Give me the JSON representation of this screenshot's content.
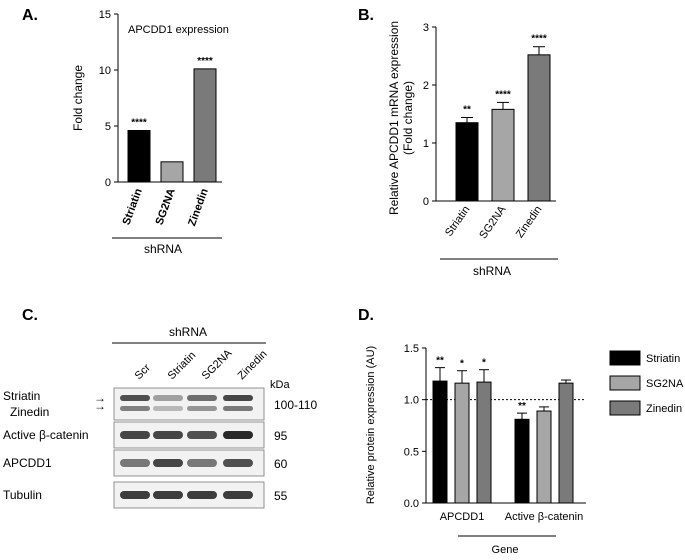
{
  "panels": {
    "a": "A.",
    "b": "B.",
    "c": "C.",
    "d": "D."
  },
  "chart_data": [
    {
      "panel": "A.",
      "type": "bar",
      "title": "APCDD1 expression",
      "ylabel": "Fold change",
      "xlabel": "shRNA",
      "categories": [
        "Striatin",
        "SG2NA",
        "Zinedin"
      ],
      "values": [
        4.6,
        1.8,
        10.1
      ],
      "annotations": [
        "****",
        "",
        "****"
      ],
      "ylim": [
        0,
        15
      ],
      "yticks": [
        0,
        5,
        10,
        15
      ],
      "colors": [
        "#000000",
        "#a6a6a6",
        "#7a7a7a"
      ]
    },
    {
      "panel": "B.",
      "type": "bar",
      "title": "",
      "ylabel": "Relative APCDD1 mRNA expression",
      "ylabel2": "(Fold change)",
      "xlabel": "shRNA",
      "categories": [
        "Striatin",
        "SG2NA",
        "Zinedin"
      ],
      "values": [
        1.35,
        1.58,
        2.52
      ],
      "errors": [
        0.09,
        0.12,
        0.14
      ],
      "annotations": [
        "**",
        "****",
        "****"
      ],
      "ylim": [
        0,
        3
      ],
      "yticks": [
        0,
        1,
        2,
        3
      ],
      "colors": [
        "#000000",
        "#a6a6a6",
        "#7a7a7a"
      ]
    },
    {
      "panel": "D.",
      "type": "bar",
      "ylabel": "Relative protein expression (AU)",
      "xlabel": "Gene",
      "categories": [
        "APCDD1",
        "Active β-catenin"
      ],
      "series": [
        {
          "name": "Striatin",
          "values": [
            1.18,
            0.81
          ],
          "errors": [
            0.13,
            0.06
          ],
          "annotations": [
            "**",
            "**"
          ],
          "color": "#000000"
        },
        {
          "name": "SG2NA",
          "values": [
            1.16,
            0.89
          ],
          "errors": [
            0.12,
            0.04
          ],
          "annotations": [
            "*",
            ""
          ],
          "color": "#a6a6a6"
        },
        {
          "name": "Zinedin",
          "values": [
            1.17,
            1.16
          ],
          "errors": [
            0.12,
            0.03
          ],
          "annotations": [
            "*",
            ""
          ],
          "color": "#7a7a7a"
        }
      ],
      "reference_line": 1.0,
      "ylim": [
        0,
        1.5
      ],
      "yticks": [
        "0.0",
        "0.5",
        "1.0",
        "1.5"
      ],
      "legend_position": "right"
    }
  ],
  "blot": {
    "header": "shRNA",
    "lanes": [
      "Scr",
      "Striatin",
      "SG2NA",
      "Zinedin"
    ],
    "kda_label": "kDa",
    "rows": [
      {
        "labels": [
          "Striatin",
          "Zinedin"
        ],
        "kda": "100-110"
      },
      {
        "labels": [
          "Active β-catenin"
        ],
        "kda": "95"
      },
      {
        "labels": [
          "APCDD1"
        ],
        "kda": "60"
      },
      {
        "labels": [
          "Tubulin"
        ],
        "kda": "55"
      }
    ],
    "intensities": [
      [
        0.75,
        0.35,
        0.6,
        0.8
      ],
      [
        0.8,
        0.8,
        0.75,
        0.95
      ],
      [
        0.55,
        0.8,
        0.55,
        0.75
      ],
      [
        0.85,
        0.85,
        0.85,
        0.85
      ]
    ]
  }
}
